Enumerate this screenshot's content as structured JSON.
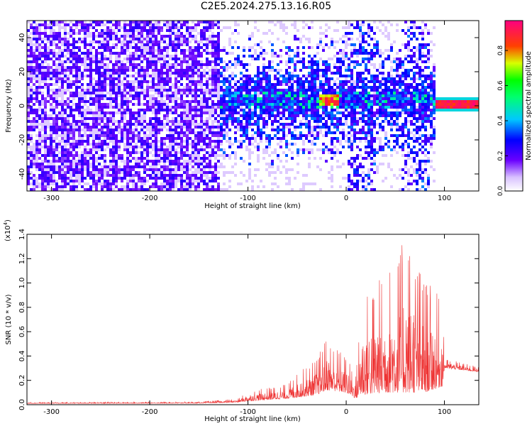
{
  "title": "C2E5.2024.275.13.16.R05",
  "chart_data": [
    {
      "type": "heatmap",
      "xlabel": "Height of straight line (km)",
      "ylabel": "Frequency (Hz)",
      "xlim": [
        -325,
        135
      ],
      "ylim": [
        -50,
        50
      ],
      "x_ticks": [
        -300,
        -200,
        -100,
        0,
        100
      ],
      "y_ticks": [
        -40,
        -20,
        0,
        20,
        40
      ],
      "colorbar": {
        "label": "Normalized spectral amplitude",
        "range": [
          0.0,
          0.97
        ],
        "ticks": [
          "0.0",
          "0.2",
          "0.4",
          "0.6",
          "0.8"
        ]
      },
      "description_bands": [
        {
          "x_range": [
            -325,
            -130
          ],
          "freq_range": [
            -50,
            50
          ],
          "level": "low-noise"
        },
        {
          "x_range": [
            -130,
            -30
          ],
          "freq_center": 5,
          "level": "moderate"
        },
        {
          "x_range": [
            -30,
            -10
          ],
          "freq_center": 2,
          "level": "high"
        },
        {
          "x_range": [
            90,
            135
          ],
          "freq_center": 2,
          "level": "high"
        }
      ]
    },
    {
      "type": "line",
      "xlabel": "Height of straight line (km)",
      "ylabel": "SNR (10 * v/v)",
      "y_multiplier": "(x10",
      "y_multiplier_exp": "4",
      "y_multiplier_close": ")",
      "xlim": [
        -325,
        135
      ],
      "ylim": [
        0,
        1.4
      ],
      "x_ticks": [
        -300,
        -200,
        -100,
        0,
        100
      ],
      "y_ticks": [
        "0.0",
        "0.2",
        "0.4",
        "0.6",
        "0.8",
        "1.0",
        "1.2",
        "1.4"
      ],
      "color": "#ee3333",
      "envelope": [
        {
          "x": -325,
          "base": 0.01,
          "spread": 0.01
        },
        {
          "x": -150,
          "base": 0.012,
          "spread": 0.012
        },
        {
          "x": -110,
          "base": 0.02,
          "spread": 0.03
        },
        {
          "x": -100,
          "base": 0.03,
          "spread": 0.08
        },
        {
          "x": -60,
          "base": 0.05,
          "spread": 0.12
        },
        {
          "x": -50,
          "base": 0.06,
          "spread": 0.2
        },
        {
          "x": -30,
          "base": 0.08,
          "spread": 0.3
        },
        {
          "x": -20,
          "base": 0.12,
          "spread": 0.45
        },
        {
          "x": 0,
          "base": 0.1,
          "spread": 0.3
        },
        {
          "x": 10,
          "base": 0.05,
          "spread": 0.2
        },
        {
          "x": 15,
          "base": 0.08,
          "spread": 0.8
        },
        {
          "x": 40,
          "base": 0.1,
          "spread": 1.0
        },
        {
          "x": 63,
          "base": 0.1,
          "spread": 1.3
        },
        {
          "x": 80,
          "base": 0.1,
          "spread": 0.95
        },
        {
          "x": 98,
          "base": 0.15,
          "spread": 0.7
        },
        {
          "x": 100,
          "base": 0.3,
          "spread": 0.08
        },
        {
          "x": 135,
          "base": 0.27,
          "spread": 0.04
        }
      ]
    }
  ]
}
